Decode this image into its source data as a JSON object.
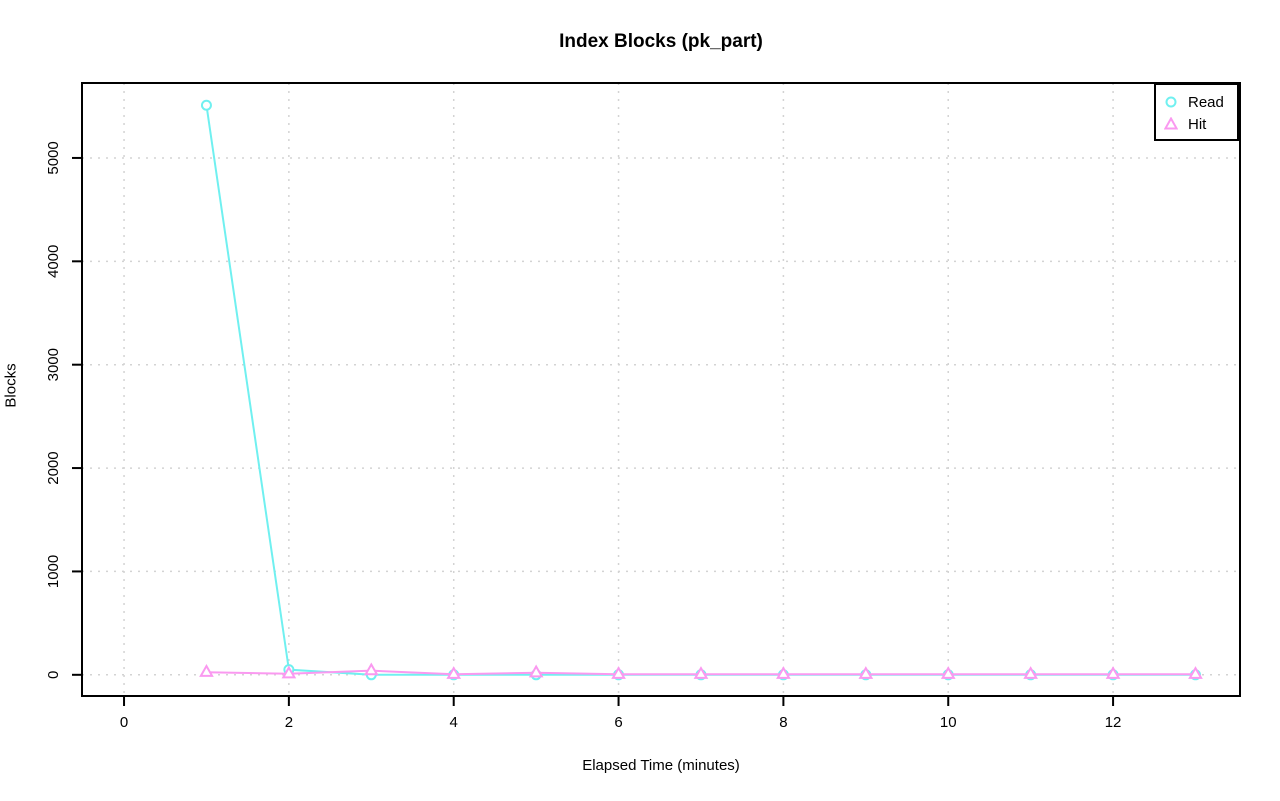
{
  "chart_data": {
    "type": "line",
    "title": "Index Blocks (pk_part)",
    "xlabel": "Elapsed Time (minutes)",
    "ylabel": "Blocks",
    "x": [
      1,
      2,
      3,
      4,
      5,
      6,
      7,
      8,
      9,
      10,
      11,
      12,
      13
    ],
    "series": [
      {
        "name": "Read",
        "symbol": "circle",
        "color": "#70f0f0",
        "values": [
          5510,
          50,
          0,
          0,
          0,
          0,
          0,
          0,
          0,
          0,
          0,
          0,
          0
        ]
      },
      {
        "name": "Hit",
        "symbol": "triangle",
        "color": "#fa99f0",
        "values": [
          25,
          10,
          40,
          5,
          20,
          5,
          5,
          5,
          5,
          5,
          5,
          5,
          5
        ]
      }
    ],
    "x_ticks": [
      0,
      2,
      4,
      6,
      8,
      10,
      12
    ],
    "y_ticks": [
      0,
      1000,
      2000,
      3000,
      4000,
      5000
    ],
    "xlim": [
      -0.51,
      13.54
    ],
    "ylim": [
      -205,
      5725
    ],
    "grid": "dotted",
    "grid_color": "#d3d3d3",
    "axis_color": "#000000",
    "background": "#ffffff",
    "legend_position": "top-right",
    "legend_labels": [
      "Read",
      "Hit"
    ]
  }
}
